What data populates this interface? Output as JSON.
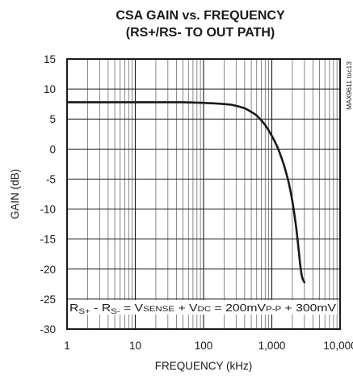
{
  "chart_data": {
    "type": "line",
    "title": "CSA GAIN vs. FREQUENCY",
    "subtitle": "(RS+/RS- TO OUT PATH)",
    "xlabel": "FREQUENCY (kHz)",
    "ylabel": "GAIN (dB)",
    "xscale": "log",
    "xlim": [
      1,
      10000
    ],
    "ylim": [
      -30,
      15
    ],
    "xticks": [
      1,
      10,
      100,
      1000,
      10000
    ],
    "xtick_labels": [
      "1",
      "10",
      "100",
      "1,000",
      "10,000"
    ],
    "yticks": [
      15,
      10,
      5,
      0,
      -5,
      -10,
      -15,
      -20,
      -25,
      -30
    ],
    "ytick_labels": [
      "15",
      "10",
      "5",
      "0",
      "-5",
      "-10",
      "-15",
      "-20",
      "-25",
      "-30"
    ],
    "grid": true,
    "series": [
      {
        "x": [
          1,
          2,
          5,
          10,
          20,
          50,
          100,
          150,
          200,
          250,
          300,
          350,
          400,
          450,
          500,
          550,
          600,
          700,
          800,
          900,
          1000,
          1100,
          1200,
          1300,
          1400,
          1500,
          1600,
          1700,
          1800,
          1900,
          2000,
          2100,
          2200,
          2300,
          2400,
          2500,
          2600,
          2700,
          2800,
          2900,
          3000
        ],
        "y": [
          7.8,
          7.8,
          7.8,
          7.8,
          7.8,
          7.8,
          7.7,
          7.6,
          7.5,
          7.4,
          7.2,
          7.0,
          6.8,
          6.5,
          6.2,
          5.9,
          5.6,
          4.8,
          4.0,
          3.1,
          2.2,
          1.3,
          0.4,
          -0.6,
          -1.6,
          -2.6,
          -3.7,
          -4.8,
          -6.0,
          -7.3,
          -8.7,
          -10.2,
          -11.8,
          -13.5,
          -15.4,
          -17.3,
          -19.2,
          -20.6,
          -21.5,
          -21.9,
          -22.2
        ]
      }
    ],
    "annotations": {
      "condition": {
        "p1": "R",
        "s1": "S+",
        "p2": " - R",
        "s2": "S-",
        "p3": " = V",
        "s3": "SENSE",
        "p4": " + V",
        "s4": "DC",
        "p5": " = 200mV",
        "s5": "P-P",
        "p6": " + 300mV"
      },
      "figure_id": "MAX9611 toc13"
    }
  },
  "colors": {
    "line": "#1a1a1a",
    "frame": "#1a1a1a",
    "grid": "#6a6a6a",
    "background": "#ffffff"
  }
}
